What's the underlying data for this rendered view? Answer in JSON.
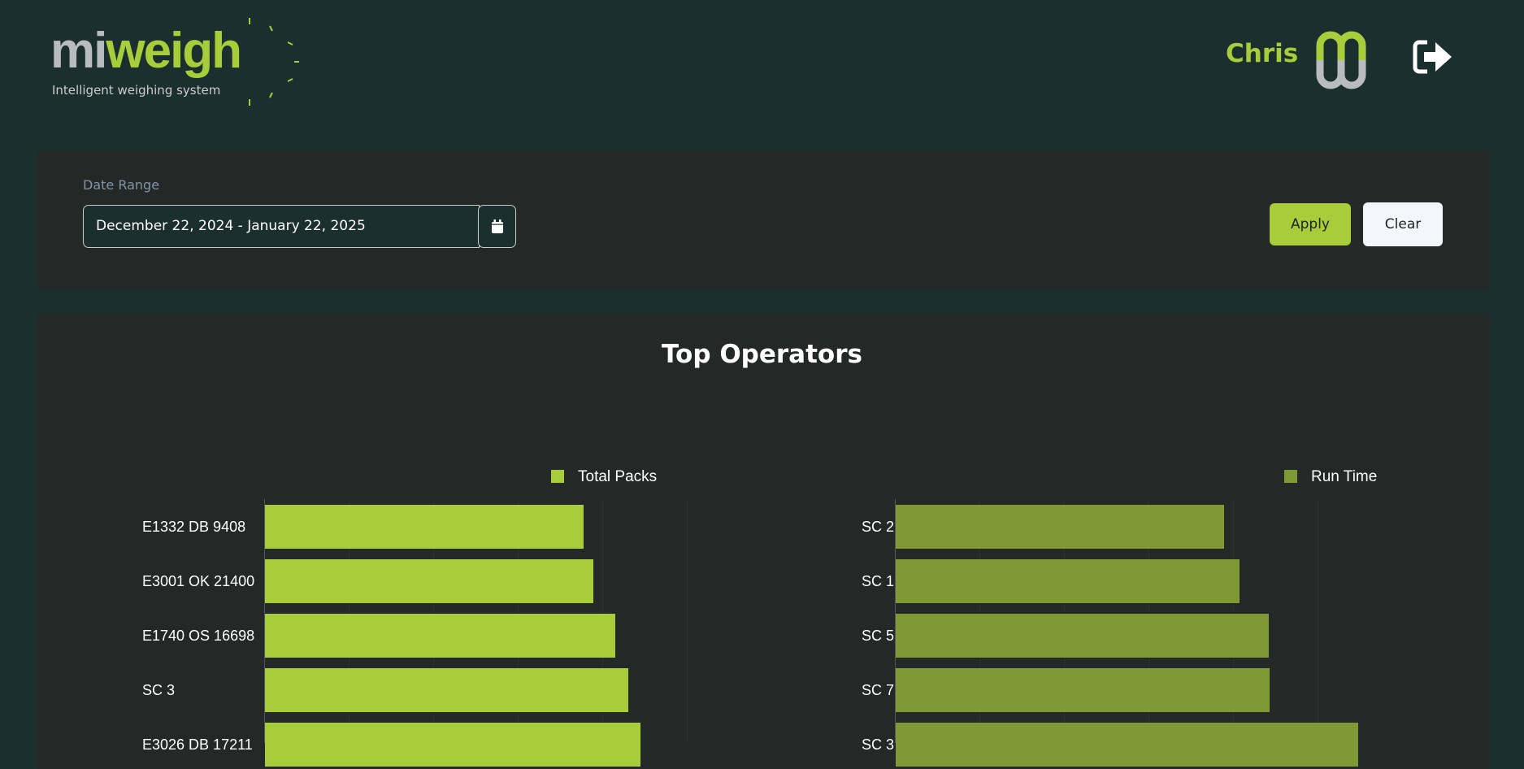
{
  "header": {
    "logo_text_mi": "mi",
    "logo_text_weigh": "weigh",
    "logo_tagline": "Intelligent weighing system",
    "user_name": "Chris",
    "logout_icon": "sign-out-icon"
  },
  "filter": {
    "date_range_label": "Date Range",
    "date_range_value": "December 22, 2024 - January 22, 2025",
    "calendar_icon": "calendar-icon",
    "apply_label": "Apply",
    "clear_label": "Clear"
  },
  "colors": {
    "background": "#1b2f2e",
    "panel": "#242827",
    "accent": "#a8cd3a",
    "run_time": "#7f9a35"
  },
  "chart_data": [
    {
      "type": "bar",
      "orientation": "horizontal",
      "title": "Top Operators",
      "legend": [
        "Total Packs"
      ],
      "legend_position": "top-right",
      "categories": [
        "E1332 DB 9408",
        "E3001 OK 21400",
        "E1740 OS 16698",
        "SC 3",
        "E3026 DB 17211"
      ],
      "values": [
        328,
        338,
        360,
        374,
        386
      ],
      "color": "#a8cd3a"
    },
    {
      "type": "bar",
      "orientation": "horizontal",
      "legend": [
        "Run Time"
      ],
      "legend_position": "top-right",
      "categories": [
        "SC 2",
        "SC 1",
        "SC 5",
        "SC 7",
        "SC 3"
      ],
      "values": [
        338,
        354,
        384,
        385,
        476
      ],
      "color": "#7f9a35"
    }
  ]
}
